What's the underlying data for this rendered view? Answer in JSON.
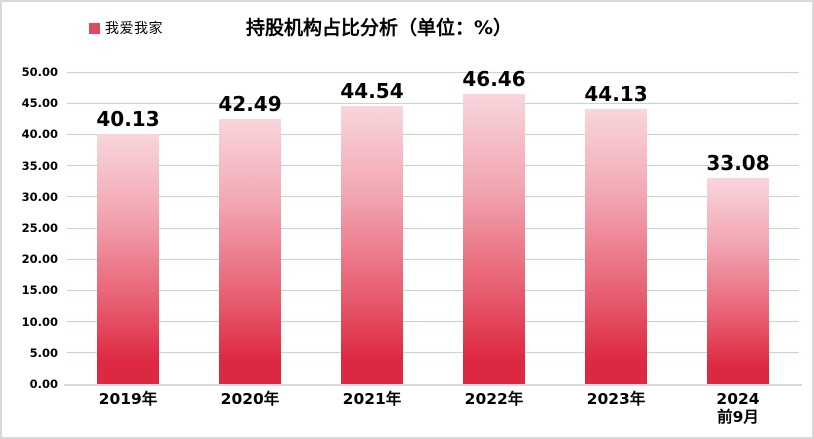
{
  "chart": {
    "legend": {
      "label": "我爱我家",
      "swatch_color": "#e04a5d"
    }
  },
  "chart_data": {
    "type": "bar",
    "title": "持股机构占比分析（单位：%）",
    "series_name": "我爱我家",
    "categories": [
      "2019年",
      "2020年",
      "2021年",
      "2022年",
      "2023年",
      "2024\n前9月"
    ],
    "values": [
      40.13,
      42.49,
      44.54,
      46.46,
      44.13,
      33.08
    ],
    "value_labels": [
      "40.13",
      "42.49",
      "44.54",
      "46.46",
      "44.13",
      "33.08"
    ],
    "xlabel": "",
    "ylabel": "",
    "ylim": [
      0,
      50
    ],
    "ytick_step": 5,
    "ytick_labels": [
      "0.00",
      "5.00",
      "10.00",
      "15.00",
      "20.00",
      "25.00",
      "30.00",
      "35.00",
      "40.00",
      "45.00",
      "50.00"
    ],
    "grid": "horizontal",
    "legend_position": "top-left",
    "colors": {
      "bar_gradient_top": "#f8d6dc",
      "bar_gradient_mid1": "#f2a6b2",
      "bar_gradient_mid2": "#e75d70",
      "bar_gradient_bottom": "#dc2840",
      "gridline": "#bedcbe",
      "axis_line": "#d9d9d9",
      "frame_border": "#d9d9d9",
      "label_text": "#000000"
    }
  }
}
